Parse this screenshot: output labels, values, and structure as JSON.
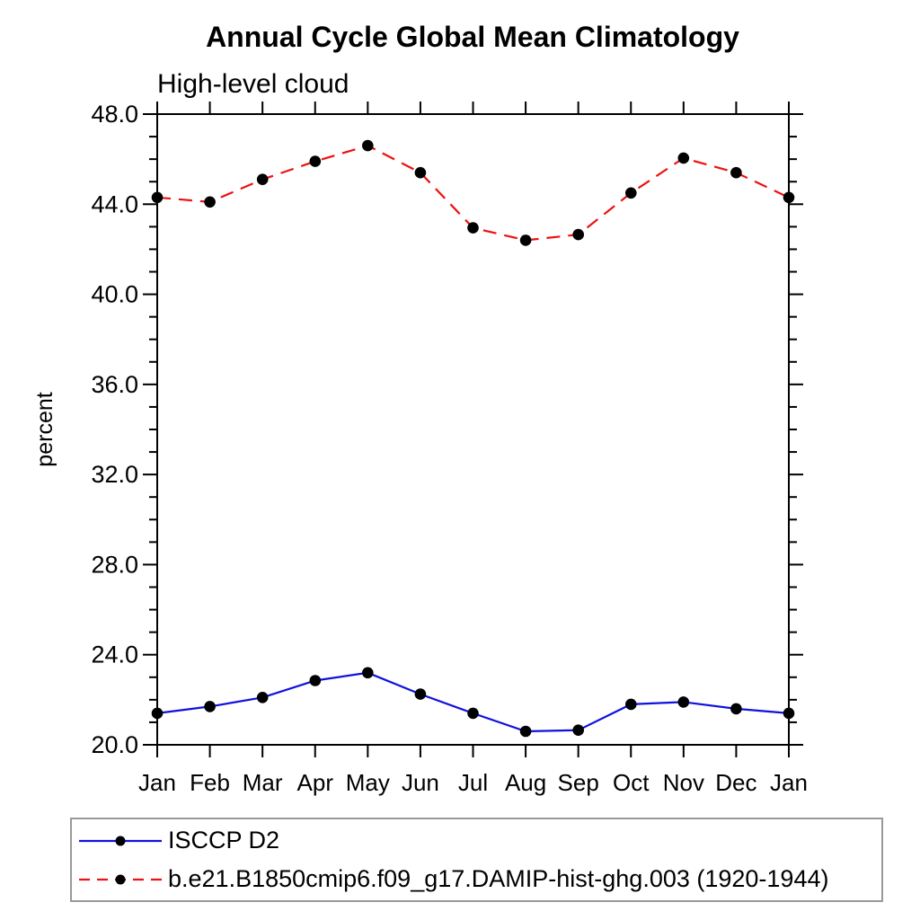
{
  "chart_data": {
    "type": "line",
    "title": "Annual Cycle Global Mean Climatology",
    "subtitle": "High-level cloud",
    "xlabel": "",
    "ylabel": "percent",
    "ylim": [
      20.0,
      48.0
    ],
    "y_major_ticks": [
      20.0,
      24.0,
      28.0,
      32.0,
      36.0,
      40.0,
      44.0,
      48.0
    ],
    "y_minor_step": 1.0,
    "y_tick_format": "one_decimal",
    "grid": false,
    "legend_position": "bottom-left-box",
    "categories": [
      "Jan",
      "Feb",
      "Mar",
      "Apr",
      "May",
      "Jun",
      "Jul",
      "Aug",
      "Sep",
      "Oct",
      "Nov",
      "Dec",
      "Jan"
    ],
    "series": [
      {
        "name": "ISCCP D2",
        "line_style": "solid",
        "color": "#1111dd",
        "marker": "circle",
        "marker_color": "#000000",
        "values": [
          21.4,
          21.7,
          22.1,
          22.85,
          23.2,
          22.25,
          21.4,
          20.6,
          20.65,
          21.8,
          21.9,
          21.6,
          21.4
        ]
      },
      {
        "name": "b.e21.B1850cmip6.f09_g17.DAMIP-hist-ghg.003 (1920-1944)",
        "line_style": "dashed",
        "color": "#ee1111",
        "marker": "circle",
        "marker_color": "#000000",
        "values": [
          44.3,
          44.1,
          45.1,
          45.9,
          46.6,
          45.4,
          42.95,
          42.4,
          42.65,
          44.5,
          46.05,
          45.4,
          44.3
        ]
      }
    ],
    "frame_color": "#000000"
  }
}
